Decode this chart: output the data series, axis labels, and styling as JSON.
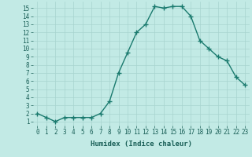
{
  "x": [
    0,
    1,
    2,
    3,
    4,
    5,
    6,
    7,
    8,
    9,
    10,
    11,
    12,
    13,
    14,
    15,
    16,
    17,
    18,
    19,
    20,
    21,
    22,
    23
  ],
  "y": [
    2,
    1.5,
    1,
    1.5,
    1.5,
    1.5,
    1.5,
    2,
    3.5,
    7,
    9.5,
    12,
    13,
    15.2,
    15,
    15.2,
    15.2,
    14,
    11,
    10,
    9,
    8.5,
    6.5,
    5.5
  ],
  "line_color": "#1a7a6e",
  "marker_color": "#1a7a6e",
  "bg_color": "#c2eae5",
  "grid_color": "#a8d4cf",
  "xlabel": "Humidex (Indice chaleur)",
  "xlabel_color": "#1a5f57",
  "tick_color": "#1a5f57",
  "xlim": [
    -0.5,
    23.5
  ],
  "ylim": [
    0.5,
    15.8
  ],
  "yticks": [
    1,
    2,
    3,
    4,
    5,
    6,
    7,
    8,
    9,
    10,
    11,
    12,
    13,
    14,
    15
  ],
  "xticks": [
    0,
    1,
    2,
    3,
    4,
    5,
    6,
    7,
    8,
    9,
    10,
    11,
    12,
    13,
    14,
    15,
    16,
    17,
    18,
    19,
    20,
    21,
    22,
    23
  ],
  "xtick_labels": [
    "0",
    "1",
    "2",
    "3",
    "4",
    "5",
    "6",
    "7",
    "8",
    "9",
    "10",
    "11",
    "12",
    "13",
    "14",
    "15",
    "16",
    "17",
    "18",
    "19",
    "20",
    "21",
    "22",
    "23"
  ],
  "font_family": "monospace",
  "linewidth": 1.0,
  "markersize": 4,
  "tick_fontsize": 5.5,
  "xlabel_fontsize": 6.5,
  "xlabel_fontweight": "bold"
}
